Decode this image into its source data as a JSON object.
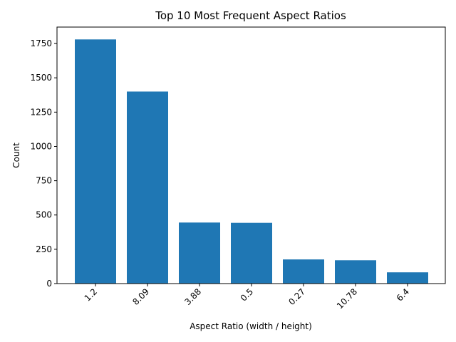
{
  "chart_data": {
    "type": "bar",
    "title": "Top 10 Most Frequent Aspect Ratios",
    "xlabel": "Aspect Ratio (width / height)",
    "ylabel": "Count",
    "categories": [
      "1.2",
      "8.09",
      "3.88",
      "0.5",
      "0.27",
      "10.78",
      "6.4"
    ],
    "values": [
      1780,
      1400,
      445,
      443,
      176,
      170,
      82
    ],
    "ylim": [
      0,
      1870
    ],
    "yticks": [
      0,
      250,
      500,
      750,
      1000,
      1250,
      1500,
      1750
    ],
    "grid": false,
    "bar_color": "#1f77b4"
  }
}
